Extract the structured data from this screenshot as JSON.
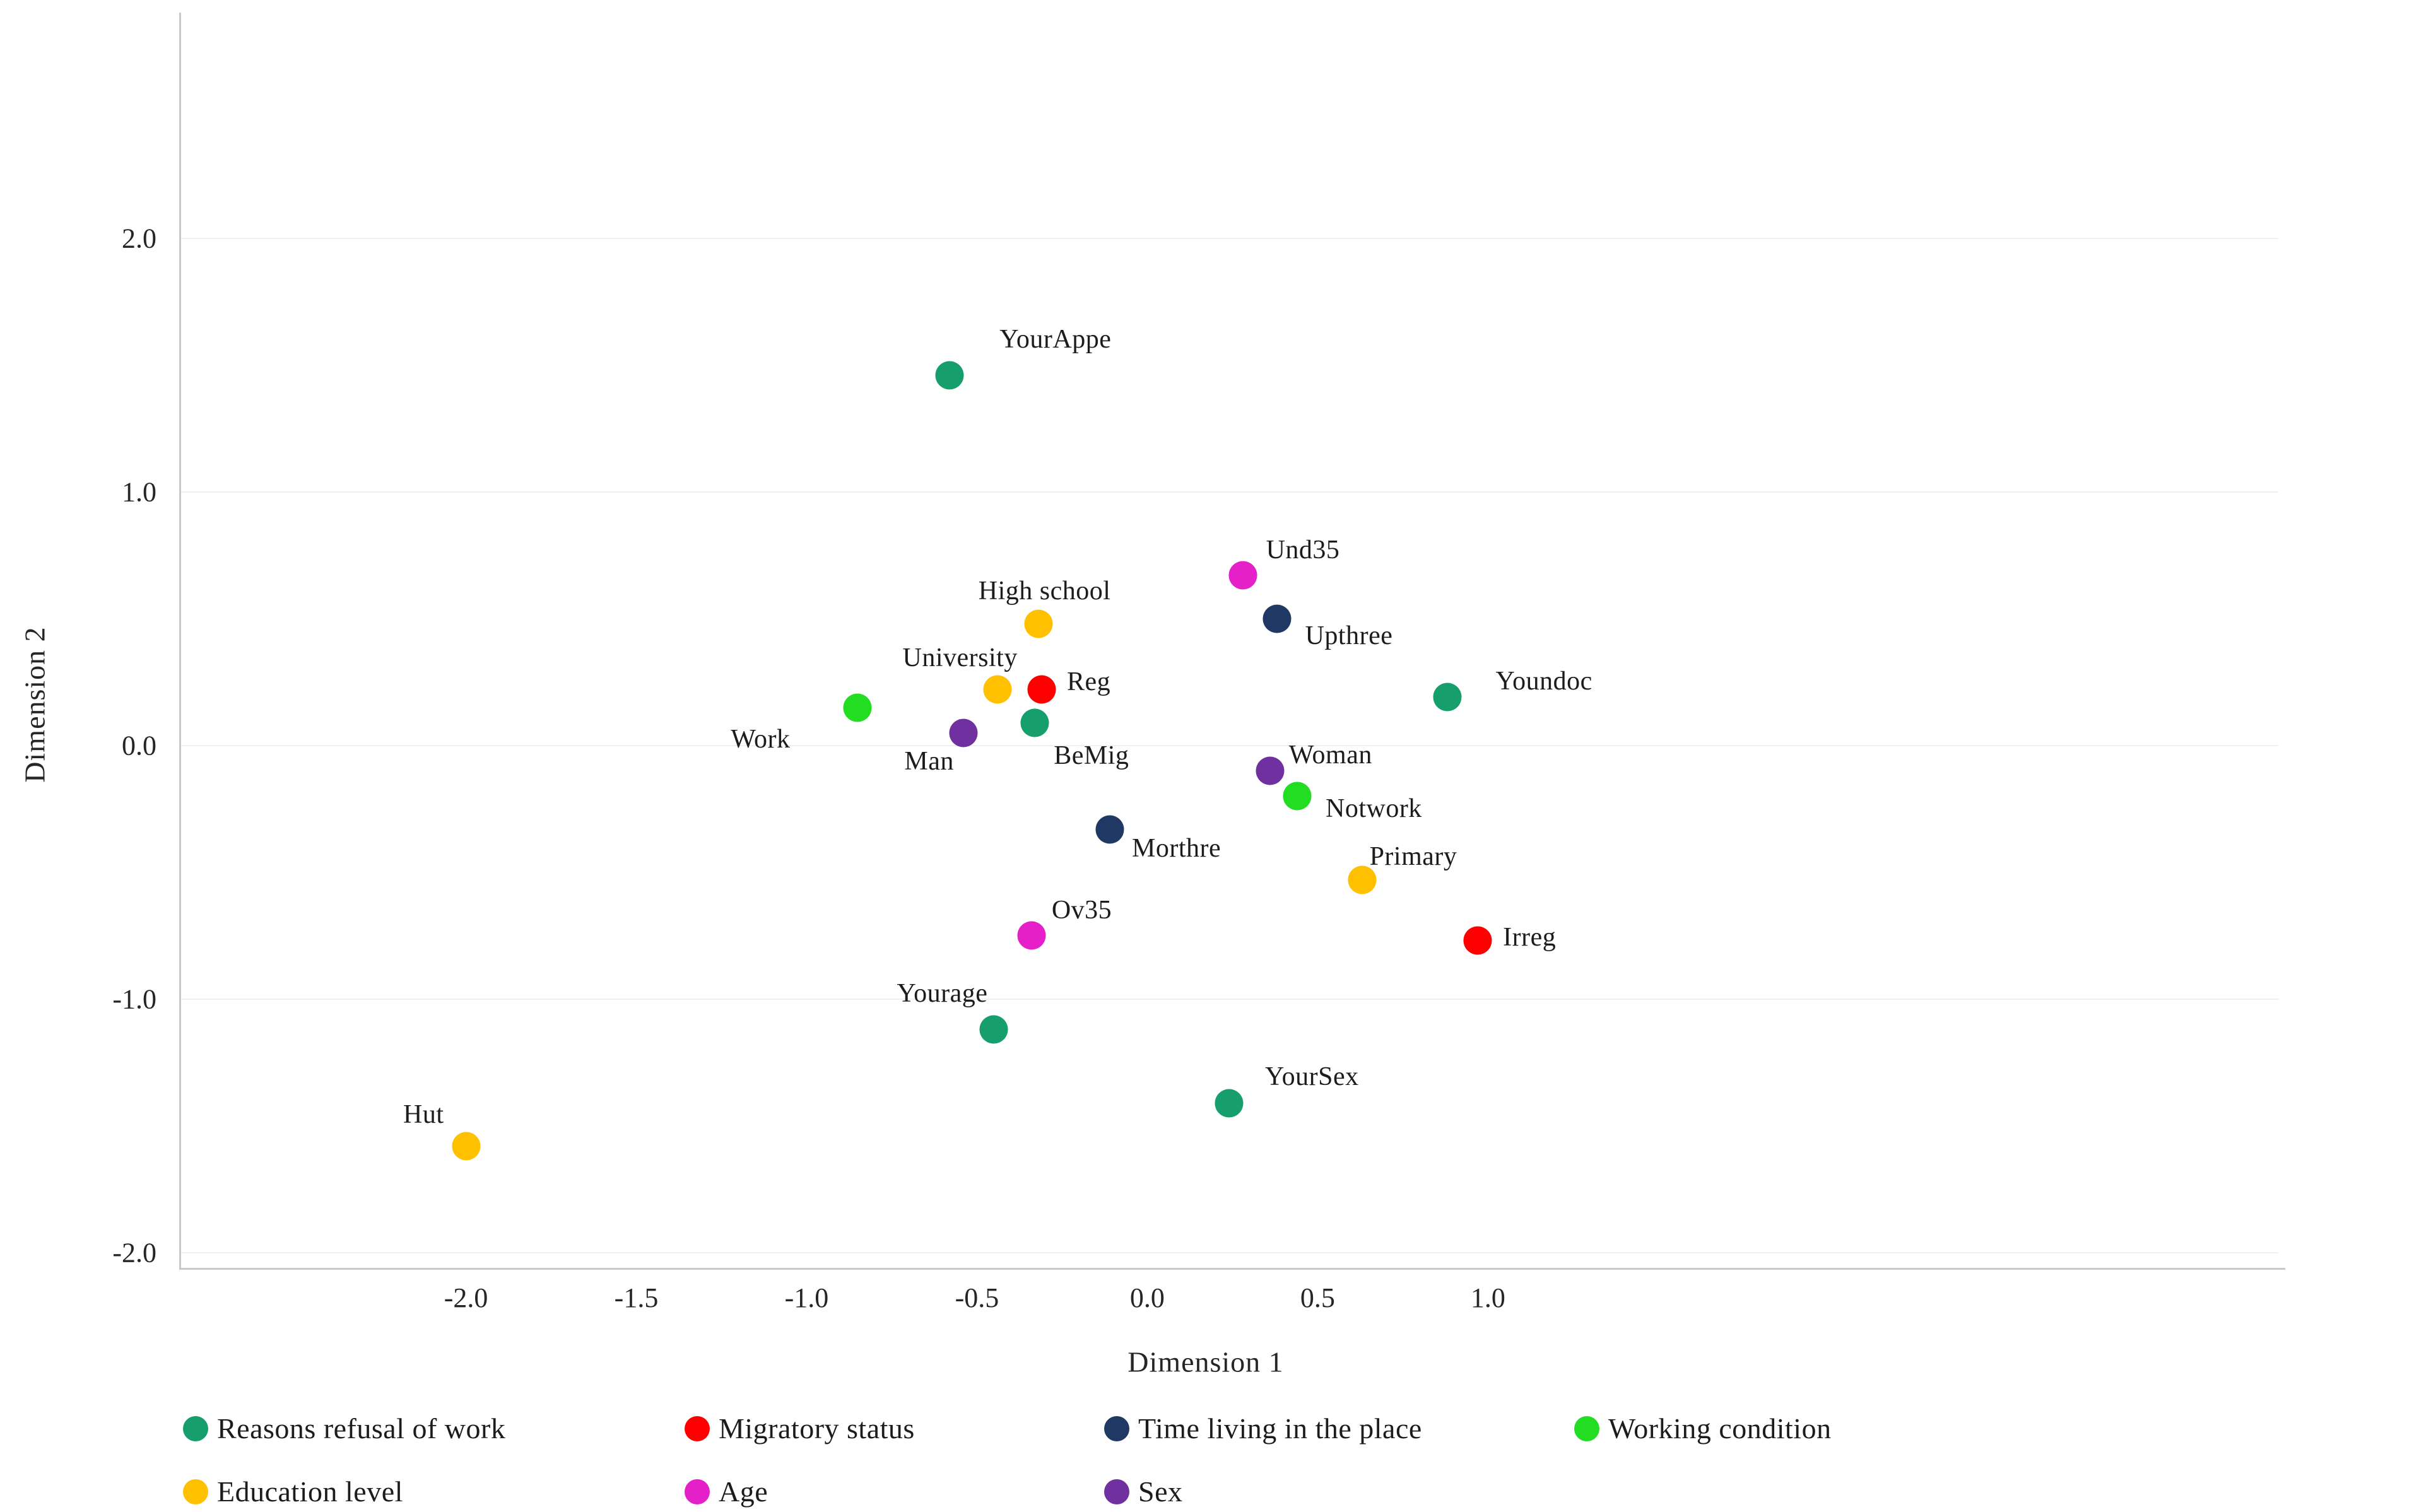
{
  "chart_data": {
    "type": "scatter",
    "title": "",
    "xlabel": "Dimension 1",
    "ylabel": "Dimension 2",
    "xlim": [
      -2.84,
      3.32
    ],
    "ylim": [
      -2.06,
      2.89
    ],
    "x_ticks": [
      "-2.0",
      "-1.5",
      "-1.0",
      "-0.5",
      "0.0",
      "0.5",
      "1.0"
    ],
    "x_tick_values": [
      -2.0,
      -1.5,
      -1.0,
      -0.5,
      0.0,
      0.5,
      1.0
    ],
    "y_ticks": [
      "2.0",
      "1.0",
      "0.0",
      "-1.0",
      "-2.0"
    ],
    "y_tick_values": [
      2.0,
      1.0,
      0.0,
      -1.0,
      -2.0
    ],
    "grid": "faint-horizontal",
    "legend_position": "bottom",
    "series": [
      {
        "name": "Reasons refusal of work",
        "color": "#169e6c",
        "points": [
          {
            "label": "YourAppe",
            "x": -0.58,
            "y": 1.46,
            "dx": 79,
            "dy": -57,
            "align": "left"
          },
          {
            "label": "BeMig",
            "x": -0.33,
            "y": 0.09,
            "dx": 30,
            "dy": 52,
            "align": "left"
          },
          {
            "label": "Youndoc",
            "x": 0.88,
            "y": 0.19,
            "dx": 77,
            "dy": -25,
            "align": "left"
          },
          {
            "label": "Yourage",
            "x": -0.45,
            "y": -1.12,
            "dx": -10,
            "dy": -57,
            "align": "right"
          },
          {
            "label": "YourSex",
            "x": 0.24,
            "y": -1.41,
            "dx": 57,
            "dy": -42,
            "align": "left"
          }
        ]
      },
      {
        "name": "Migratory status",
        "color": "#fe0000",
        "points": [
          {
            "label": "Reg",
            "x": -0.31,
            "y": 0.22,
            "dx": 40,
            "dy": -12,
            "align": "left"
          },
          {
            "label": "Irreg",
            "x": 0.97,
            "y": -0.77,
            "dx": 40,
            "dy": -5,
            "align": "left"
          }
        ]
      },
      {
        "name": "Time living in the place",
        "color": "#1f3864",
        "points": [
          {
            "label": "Upthree",
            "x": 0.38,
            "y": 0.5,
            "dx": 45,
            "dy": 27,
            "align": "left"
          },
          {
            "label": "Morthre",
            "x": -0.11,
            "y": -0.33,
            "dx": 35,
            "dy": 30,
            "align": "left"
          }
        ]
      },
      {
        "name": "Working condition",
        "color": "#22dd22",
        "points": [
          {
            "label": "Work",
            "x": -0.85,
            "y": 0.15,
            "dx": -107,
            "dy": 50,
            "align": "right"
          },
          {
            "label": "Notwork",
            "x": 0.44,
            "y": -0.2,
            "dx": 45,
            "dy": 20,
            "align": "left"
          }
        ]
      },
      {
        "name": "Education level",
        "color": "#ffc000",
        "points": [
          {
            "label": "High school",
            "x": -0.32,
            "y": 0.48,
            "dx": 10,
            "dy": -52,
            "align": "center"
          },
          {
            "label": "University",
            "x": -0.44,
            "y": 0.22,
            "dx": 32,
            "dy": -50,
            "align": "right"
          },
          {
            "label": "Primary",
            "x": 0.63,
            "y": -0.53,
            "dx": 12,
            "dy": -37,
            "align": "left"
          },
          {
            "label": "Hut",
            "x": -2.0,
            "y": -1.58,
            "dx": -35,
            "dy": -50,
            "align": "right"
          }
        ]
      },
      {
        "name": "Age",
        "color": "#e620c8",
        "points": [
          {
            "label": "Und35",
            "x": 0.28,
            "y": 0.67,
            "dx": 37,
            "dy": -40,
            "align": "left"
          },
          {
            "label": "Ov35",
            "x": -0.34,
            "y": -0.75,
            "dx": 32,
            "dy": -40,
            "align": "left"
          }
        ]
      },
      {
        "name": "Sex",
        "color": "#7030a0",
        "points": [
          {
            "label": "Man",
            "x": -0.54,
            "y": 0.05,
            "dx": -15,
            "dy": 45,
            "align": "right"
          },
          {
            "label": "Woman",
            "x": 0.36,
            "y": -0.1,
            "dx": 30,
            "dy": -25,
            "align": "left"
          }
        ]
      }
    ]
  }
}
